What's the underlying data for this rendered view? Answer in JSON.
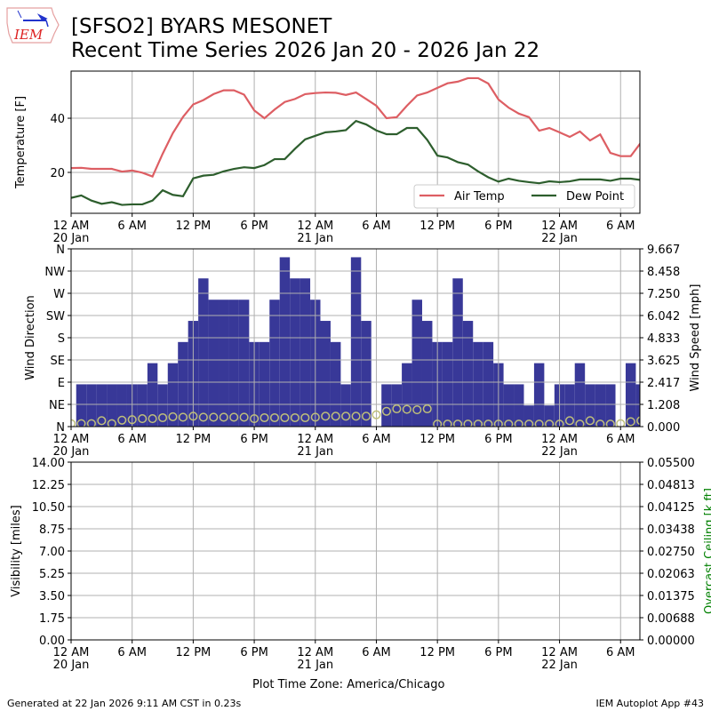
{
  "header": {
    "logo_text": "IEM",
    "title_line1": "[SFSO2] BYARS MESONET",
    "title_line2": "Recent Time Series 2026 Jan 20 - 2026 Jan 22"
  },
  "footer": {
    "generated": "Generated at 22 Jan 2026 9:11 AM CST in 0.23s",
    "app": "IEM Autoplot App #43",
    "timezone_label": "Plot Time Zone: America/Chicago"
  },
  "colors": {
    "air_temp": "#dd5e63",
    "dew_point": "#2d5e2d",
    "wind_speed": "#383898",
    "wind_dir": "#bfbf7a",
    "ceiling_label": "#008000"
  },
  "x_axis": {
    "xlim_hours": [
      0,
      55.9
    ],
    "ticks": [
      {
        "h": 0,
        "l1": "12 AM",
        "l2": "20 Jan"
      },
      {
        "h": 6,
        "l1": "6 AM",
        "l2": ""
      },
      {
        "h": 12,
        "l1": "12 PM",
        "l2": ""
      },
      {
        "h": 18,
        "l1": "6 PM",
        "l2": ""
      },
      {
        "h": 24,
        "l1": "12 AM",
        "l2": "21 Jan"
      },
      {
        "h": 30,
        "l1": "6 AM",
        "l2": ""
      },
      {
        "h": 36,
        "l1": "12 PM",
        "l2": ""
      },
      {
        "h": 42,
        "l1": "6 PM",
        "l2": ""
      },
      {
        "h": 48,
        "l1": "12 AM",
        "l2": "22 Jan"
      },
      {
        "h": 54,
        "l1": "6 AM",
        "l2": ""
      }
    ]
  },
  "chart_data": [
    {
      "type": "line",
      "ylabel": "Temperature [F]",
      "ylim": [
        4.9,
        57.4
      ],
      "yticks": [
        {
          "v": 20,
          "l": "20"
        },
        {
          "v": 40,
          "l": "40"
        }
      ],
      "legend_placement": "lower-right",
      "x_hours": [
        0,
        1,
        2,
        3,
        4,
        5,
        6,
        7,
        8,
        9,
        10,
        11,
        12,
        13,
        14,
        15,
        16,
        17,
        18,
        19,
        20,
        21,
        22,
        23,
        24,
        25,
        26,
        27,
        28,
        29,
        30,
        31,
        32,
        33,
        34,
        35,
        36,
        37,
        38,
        39,
        40,
        41,
        42,
        43,
        44,
        45,
        46,
        47,
        48,
        49,
        50,
        51,
        52,
        53,
        54,
        55,
        56
      ],
      "series": [
        {
          "name": "Air Temp",
          "values": [
            21.6,
            21.7,
            21.3,
            21.3,
            21.3,
            20.3,
            20.7,
            19.9,
            18.5,
            26.9,
            34.5,
            40.5,
            45.1,
            46.7,
            48.9,
            50.3,
            50.3,
            48.7,
            42.9,
            40,
            43.2,
            46,
            47.1,
            48.9,
            49.3,
            49.5,
            49.4,
            48.6,
            49.5,
            47.1,
            44.6,
            40,
            40.4,
            44.6,
            48.4,
            49.5,
            51.2,
            52.9,
            53.5,
            54.8,
            54.8,
            52.8,
            46.9,
            43.9,
            41.7,
            40.4,
            35.4,
            36.4,
            34.8,
            33.1,
            35.1,
            31.8,
            34,
            27.2,
            26,
            26,
            31
          ]
        },
        {
          "name": "Dew Point",
          "values": [
            10.6,
            11.5,
            9.6,
            8.4,
            9,
            8,
            8.2,
            8.2,
            9.6,
            13.4,
            11.7,
            11.2,
            17.8,
            18.8,
            19.1,
            20.4,
            21.3,
            21.9,
            21.6,
            22.7,
            24.9,
            24.9,
            28.7,
            32.2,
            33.5,
            34.8,
            35.1,
            35.6,
            39,
            37.7,
            35.5,
            34.1,
            34.1,
            36.4,
            36.4,
            32,
            26.2,
            25.5,
            23.8,
            22.9,
            20.4,
            18.2,
            16.6,
            17.7,
            16.9,
            16.4,
            16,
            16.7,
            16.4,
            16.7,
            17.4,
            17.4,
            17.4,
            16.9,
            17.7,
            17.7,
            17.2
          ]
        }
      ]
    },
    {
      "type": "bar",
      "ylabel": "Wind Direction",
      "y2label": "Wind Speed [mph]",
      "ylim": [
        0,
        360
      ],
      "y2lim": [
        0,
        9.667
      ],
      "yticks": [
        {
          "v": 0,
          "l": "N"
        },
        {
          "v": 45,
          "l": "NE"
        },
        {
          "v": 90,
          "l": "E"
        },
        {
          "v": 135,
          "l": "SE"
        },
        {
          "v": 180,
          "l": "S"
        },
        {
          "v": 225,
          "l": "SW"
        },
        {
          "v": 270,
          "l": "W"
        },
        {
          "v": 315,
          "l": "NW"
        },
        {
          "v": 360,
          "l": "N"
        }
      ],
      "y2ticks": [
        "0.000",
        "1.208",
        "2.417",
        "3.625",
        "4.833",
        "6.042",
        "7.250",
        "8.458",
        "9.667"
      ],
      "wind_speed_hours": [
        1,
        2,
        3,
        4,
        5,
        6,
        7,
        8,
        9,
        10,
        11,
        12,
        13,
        14,
        15,
        16,
        17,
        18,
        19,
        20,
        21,
        22,
        23,
        24,
        25,
        26,
        27,
        28,
        29,
        30,
        31,
        32,
        33,
        34,
        35,
        36,
        37,
        38,
        39,
        40,
        41,
        42,
        43,
        44,
        45,
        46,
        47,
        48,
        49,
        50,
        51,
        52,
        53,
        54,
        55,
        56
      ],
      "wind_speed_mph": [
        2.3,
        2.3,
        2.3,
        2.3,
        2.3,
        2.3,
        2.3,
        3.45,
        2.3,
        3.45,
        4.6,
        5.75,
        8.06,
        6.9,
        6.9,
        6.9,
        6.9,
        4.6,
        4.6,
        6.9,
        9.21,
        8.06,
        8.06,
        6.9,
        5.75,
        4.6,
        2.3,
        9.21,
        5.75,
        0,
        2.3,
        2.3,
        3.45,
        6.9,
        5.75,
        4.6,
        4.6,
        8.06,
        5.75,
        4.6,
        4.6,
        3.45,
        2.3,
        2.3,
        1.15,
        3.45,
        1.15,
        2.3,
        2.3,
        3.45,
        2.3,
        2.3,
        2.3,
        0,
        3.45,
        2.3
      ],
      "wind_dir_hours": [
        0,
        1,
        2,
        3,
        4,
        5,
        6,
        7,
        8,
        9,
        10,
        11,
        12,
        13,
        14,
        15,
        16,
        17,
        18,
        19,
        20,
        21,
        22,
        23,
        24,
        25,
        26,
        27,
        28,
        29,
        30,
        31,
        32,
        33,
        34,
        35,
        36,
        37,
        38,
        39,
        40,
        41,
        42,
        43,
        44,
        45,
        46,
        47,
        48,
        49,
        50,
        51,
        52,
        53,
        54,
        55,
        56
      ],
      "wind_dir_deg": [
        6,
        6,
        6,
        12,
        6,
        13,
        14,
        16,
        16,
        18,
        20,
        19,
        21,
        19,
        19,
        19,
        19,
        19,
        16,
        18,
        18,
        18,
        18,
        18,
        19,
        21,
        21,
        21,
        21,
        21,
        24,
        31,
        36,
        35,
        34,
        36,
        5,
        5,
        5,
        5,
        5,
        5,
        5,
        5,
        5,
        5,
        5,
        5,
        5,
        12,
        5,
        12,
        5,
        5,
        6,
        10,
        12
      ]
    },
    {
      "type": "line",
      "ylabel": "Visibility [miles]",
      "y2label": "Overcast Ceiling [k ft]",
      "ylim": [
        0,
        14
      ],
      "y2lim": [
        0,
        0.055
      ],
      "yticks": [
        "0.00",
        "1.75",
        "3.50",
        "5.25",
        "7.00",
        "8.75",
        "10.50",
        "12.25",
        "14.00"
      ],
      "y2ticks": [
        "0.00000",
        "0.00688",
        "0.01375",
        "0.02063",
        "0.02750",
        "0.03438",
        "0.04125",
        "0.04813",
        "0.05500"
      ],
      "series": []
    }
  ]
}
